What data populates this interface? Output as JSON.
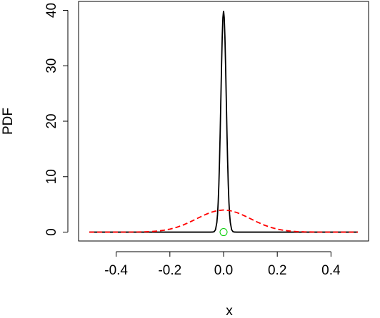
{
  "chart_data": {
    "type": "line",
    "xlabel": "x",
    "ylabel": "PDF",
    "xlim": [
      -0.54,
      0.54
    ],
    "ylim": [
      -1.6,
      41.6
    ],
    "xticks": [
      -0.4,
      -0.2,
      {
        "value": 0,
        "label": "0.0"
      },
      0.2,
      0.4
    ],
    "yticks": [
      0,
      10,
      20,
      30,
      40
    ],
    "series": [
      {
        "color": "#000000",
        "linestyle": "solid",
        "x": [
          -0.5,
          -0.05,
          -0.04,
          -0.035,
          -0.03,
          -0.025,
          -0.0225,
          -0.02,
          -0.0175,
          -0.015,
          -0.0125,
          -0.01,
          -0.0075,
          -0.005,
          -0.0025,
          0,
          0.0025,
          0.005,
          0.0075,
          0.01,
          0.0125,
          0.015,
          0.0175,
          0.02,
          0.0225,
          0.025,
          0.03,
          0.035,
          0.04,
          0.05,
          0.5
        ],
        "values": [
          0,
          0,
          0.013,
          0.087,
          0.44,
          1.75,
          3.18,
          5.4,
          8.63,
          12.95,
          18.26,
          24.2,
          30.11,
          35.21,
          38.67,
          39.89,
          38.67,
          35.21,
          30.11,
          24.2,
          18.26,
          12.95,
          8.63,
          5.4,
          3.18,
          1.75,
          0.44,
          0.087,
          0.013,
          0,
          0
        ]
      },
      {
        "color": "#ff0000",
        "linestyle": "dashed",
        "x": [
          -0.5,
          -0.45,
          -0.4,
          -0.35,
          -0.3,
          -0.275,
          -0.25,
          -0.225,
          -0.2,
          -0.175,
          -0.15,
          -0.125,
          -0.1,
          -0.075,
          -0.05,
          -0.025,
          0,
          0.025,
          0.05,
          0.075,
          0.1,
          0.125,
          0.15,
          0.175,
          0.2,
          0.225,
          0.25,
          0.275,
          0.3,
          0.35,
          0.4,
          0.45,
          0.5
        ],
        "values": [
          0,
          0.0002,
          0.0013,
          0.0087,
          0.0443,
          0.091,
          0.175,
          0.318,
          0.54,
          0.863,
          1.295,
          1.826,
          2.42,
          3.011,
          3.521,
          3.866,
          3.989,
          3.866,
          3.521,
          3.011,
          2.42,
          1.826,
          1.295,
          0.863,
          0.54,
          0.318,
          0.175,
          0.091,
          0.0443,
          0.0087,
          0.0013,
          0.0002,
          0
        ]
      },
      {
        "color": "#00cc00",
        "marker": "circle",
        "x": [
          0
        ],
        "values": [
          0
        ]
      }
    ]
  }
}
